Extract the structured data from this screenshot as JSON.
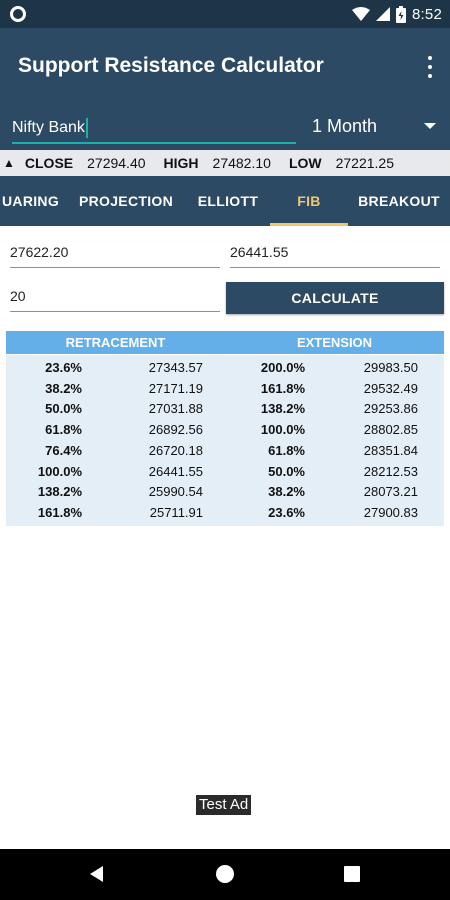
{
  "status_bar": {
    "time": "8:52",
    "icons": [
      "notification-circle-icon",
      "wifi-icon",
      "cell-signal-icon",
      "battery-icon"
    ]
  },
  "app": {
    "title": "Support Resistance Calculator",
    "overflow_icon": "more-vertical-icon"
  },
  "search": {
    "value": "Nifty Bank",
    "placeholder": ""
  },
  "period": {
    "selected": "1 Month"
  },
  "ticker": {
    "arrow": "▲",
    "close_label": "CLOSE",
    "close_value": "27294.40",
    "high_label": "HIGH",
    "high_value": "27482.10",
    "low_label": "LOW",
    "low_value": "27221.25"
  },
  "tabs": [
    {
      "label": "UARING",
      "active": false
    },
    {
      "label": "PROJECTION",
      "active": false
    },
    {
      "label": "ELLIOTT",
      "active": false
    },
    {
      "label": "FIB",
      "active": true
    },
    {
      "label": "BREAKOUT",
      "active": false
    }
  ],
  "form": {
    "high_value": "27622.20",
    "low_value": "26441.55",
    "third_value": "20",
    "calculate_label": "CALCULATE"
  },
  "results": {
    "retracement_header": "RETRACEMENT",
    "extension_header": "EXTENSION",
    "rows": [
      {
        "r_pct": "23.6%",
        "r_val": "27343.57",
        "e_pct": "200.0%",
        "e_val": "29983.50"
      },
      {
        "r_pct": "38.2%",
        "r_val": "27171.19",
        "e_pct": "161.8%",
        "e_val": "29532.49"
      },
      {
        "r_pct": "50.0%",
        "r_val": "27031.88",
        "e_pct": "138.2%",
        "e_val": "29253.86"
      },
      {
        "r_pct": "61.8%",
        "r_val": "26892.56",
        "e_pct": "100.0%",
        "e_val": "28802.85"
      },
      {
        "r_pct": "76.4%",
        "r_val": "26720.18",
        "e_pct": "61.8%",
        "e_val": "28351.84"
      },
      {
        "r_pct": "100.0%",
        "r_val": "26441.55",
        "e_pct": "50.0%",
        "e_val": "28212.53"
      },
      {
        "r_pct": "138.2%",
        "r_val": "25990.54",
        "e_pct": "38.2%",
        "e_val": "28073.21"
      },
      {
        "r_pct": "161.8%",
        "r_val": "25711.91",
        "e_pct": "23.6%",
        "e_val": "27900.83"
      }
    ]
  },
  "ad": {
    "label": "Test Ad"
  },
  "colors": {
    "status_bar": "#1e3447",
    "primary": "#2c4a63",
    "accent": "#f2c66d",
    "input_underline": "#1cb0a8",
    "table_header": "#64afe8",
    "table_body": "#e4eef7"
  },
  "nav_bar": {
    "icons": [
      "back-icon",
      "home-icon",
      "recents-icon"
    ]
  }
}
